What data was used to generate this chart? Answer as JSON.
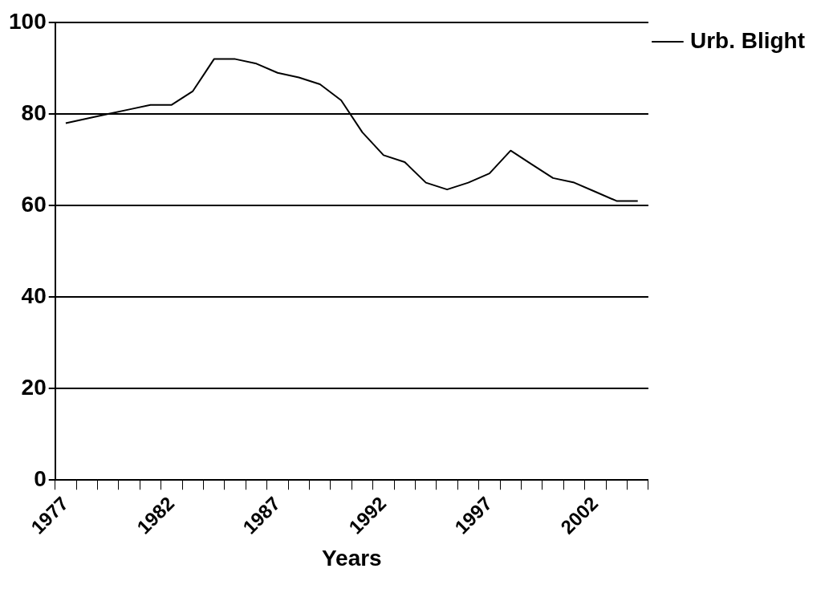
{
  "chart_data": {
    "type": "line",
    "xlabel": "Years",
    "categories": [
      "1977",
      null,
      null,
      null,
      null,
      "1982",
      null,
      null,
      null,
      null,
      "1987",
      null,
      null,
      null,
      null,
      "1992",
      null,
      null,
      null,
      null,
      "1997",
      null,
      null,
      null,
      null,
      "2002",
      null,
      null
    ],
    "series": [
      {
        "name": "Urb. Blight",
        "color": "#000000",
        "values": [
          78,
          79,
          80,
          81,
          82,
          82,
          85,
          92,
          92,
          91,
          89,
          88,
          86.5,
          83,
          76,
          71,
          69.5,
          65,
          63.5,
          65,
          67,
          72,
          69,
          66,
          65,
          63,
          61,
          61
        ]
      }
    ],
    "ylim": [
      0,
      100
    ],
    "yticks": [
      0,
      20,
      40,
      60,
      80,
      100
    ],
    "grid": "y",
    "legend": "right",
    "marker": "none",
    "line_style": "solid"
  }
}
